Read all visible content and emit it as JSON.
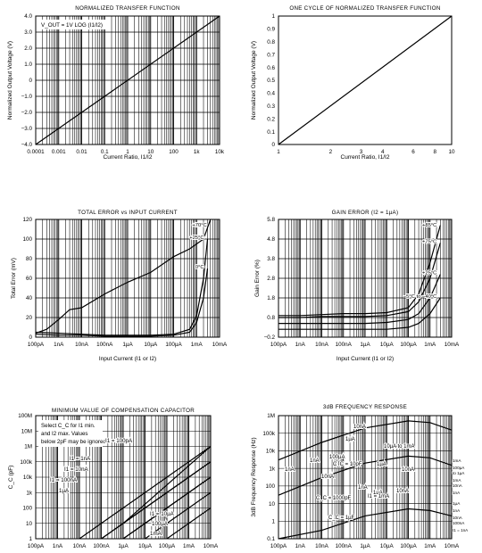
{
  "chart_data": [
    {
      "id": "c1",
      "type": "line",
      "title": "NORMALIZED TRANSFER FUNCTION",
      "annotation": "V_OUT = 1V LOG (I1/I2)",
      "xlabel": "Current Ratio, I1/I2",
      "ylabel": "Normalized Output Voltage (V)",
      "x_scale": "log",
      "xlim": [
        0.0001,
        10000
      ],
      "ylim": [
        -4,
        4
      ],
      "grid": true,
      "xticks": [
        "0.0001",
        "0.001",
        "0.01",
        "0.1",
        "1",
        "10",
        "100",
        "1k",
        "10k"
      ],
      "yticks": [
        "4.0",
        "3.0",
        "2.0",
        "1.0",
        "0",
        "−1.0",
        "−2.0",
        "−3.0",
        "−4.0"
      ],
      "series": [
        {
          "x": [
            0.0001,
            10000
          ],
          "y": [
            -4,
            4
          ]
        }
      ]
    },
    {
      "id": "c2",
      "type": "line",
      "title": "ONE CYCLE OF NORMALIZED TRANSFER FUNCTION",
      "xlabel": "Current Ratio, I1/I2",
      "ylabel": "Normalized Output Voltage (V)",
      "x_scale": "log",
      "xlim": [
        1,
        10
      ],
      "ylim": [
        0,
        1
      ],
      "grid": false,
      "xticks": [
        "1",
        "2",
        "3",
        "4",
        "6",
        "8",
        "10"
      ],
      "yticks": [
        "1",
        "0.9",
        "0.8",
        "0.7",
        "0.6",
        "0.5",
        "0.4",
        "0.3",
        "0.2",
        "0.1",
        "0"
      ],
      "series": [
        {
          "x": [
            1,
            10
          ],
          "y": [
            0,
            1
          ]
        }
      ]
    },
    {
      "id": "c3",
      "type": "line",
      "title": "TOTAL ERROR vs INPUT CURRENT",
      "xlabel": "Input Current (I1 or I2)",
      "ylabel": "Total Error (mV)",
      "x_scale": "log",
      "xlim": [
        1e-10,
        0.01
      ],
      "ylim": [
        0,
        120
      ],
      "grid": true,
      "xticks": [
        "100pA",
        "1nA",
        "10nA",
        "100nA",
        "1µA",
        "10µA",
        "100µA",
        "1mA",
        "10mA"
      ],
      "yticks": [
        "120",
        "100",
        "80",
        "60",
        "40",
        "20",
        "0"
      ],
      "series": [
        {
          "name": "+70°C",
          "x": [
            1e-10,
            3e-10,
            1e-09,
            3e-09,
            1e-08,
            1e-07,
            1e-06,
            1e-05,
            0.0001,
            0.0005,
            0.002,
            0.004
          ],
          "y": [
            4,
            8,
            18,
            28,
            30,
            44,
            56,
            66,
            82,
            90,
            100,
            120
          ]
        },
        {
          "name": "+25°C",
          "x": [
            1e-10,
            1e-09,
            1e-08,
            1e-07,
            1e-06,
            1e-05,
            0.0001,
            0.0005,
            0.001,
            0.002,
            0.003
          ],
          "y": [
            5,
            4,
            3,
            2,
            2,
            2,
            3,
            8,
            22,
            60,
            100
          ]
        },
        {
          "name": "0°C",
          "x": [
            1e-10,
            1e-09,
            1e-08,
            1e-07,
            1e-06,
            1e-05,
            0.0001,
            0.0005,
            0.001,
            0.002,
            0.003
          ],
          "y": [
            3,
            2,
            2,
            1,
            1,
            1,
            2,
            5,
            15,
            40,
            70
          ]
        }
      ]
    },
    {
      "id": "c4",
      "type": "line",
      "title": "GAIN ERROR (I2 = 1µA)",
      "xlabel": "Input Current (I1 or I2)",
      "ylabel": "Gain Error (%)",
      "x_scale": "log",
      "xlim": [
        1e-10,
        0.01
      ],
      "ylim": [
        -0.2,
        5.8
      ],
      "grid": true,
      "xticks": [
        "100pA",
        "1nA",
        "10nA",
        "100nA",
        "1µA",
        "10µA",
        "100µA",
        "1mA",
        "10mA"
      ],
      "yticks": [
        "5.8",
        "4.8",
        "3.8",
        "2.8",
        "1.8",
        "0.8",
        "−0.2"
      ],
      "series": [
        {
          "name": "+85°C",
          "x": [
            1e-10,
            1e-09,
            1e-08,
            1e-07,
            1e-06,
            1e-05,
            0.0001,
            0.0003,
            0.001,
            0.003
          ],
          "y": [
            0.9,
            0.9,
            0.95,
            1.0,
            1.0,
            1.05,
            1.3,
            2.0,
            3.6,
            5.5
          ]
        },
        {
          "name": "+75°C",
          "x": [
            1e-10,
            1e-09,
            1e-08,
            1e-07,
            1e-06,
            1e-05,
            0.0001,
            0.0003,
            0.001,
            0.003
          ],
          "y": [
            0.8,
            0.8,
            0.85,
            0.85,
            0.85,
            0.9,
            1.1,
            1.6,
            2.8,
            4.6
          ]
        },
        {
          "name": "+25°C",
          "x": [
            1e-10,
            1e-09,
            1e-08,
            1e-07,
            1e-06,
            1e-05,
            0.0001,
            0.0003,
            0.001,
            0.003
          ],
          "y": [
            0.5,
            0.5,
            0.5,
            0.5,
            0.5,
            0.55,
            0.7,
            1.0,
            1.8,
            3.0
          ]
        },
        {
          "name": "−5°C to −40°C",
          "x": [
            1e-10,
            1e-09,
            1e-08,
            1e-07,
            1e-06,
            1e-05,
            0.0001,
            0.0003,
            0.001,
            0.003
          ],
          "y": [
            0.2,
            0.2,
            0.2,
            0.2,
            0.2,
            0.2,
            0.3,
            0.5,
            1.0,
            1.8
          ]
        }
      ]
    },
    {
      "id": "c5",
      "type": "line",
      "title": "MINIMUM VALUE OF COMPENSATION CAPACITOR",
      "annotation": [
        "Select C_C for I1 min.",
        "and I2 max. Values",
        "below 2pF may be ignored."
      ],
      "xlabel": "",
      "ylabel": "C_C (pF)",
      "x_scale": "log",
      "y_scale": "log",
      "xlim": [
        1e-10,
        0.01
      ],
      "ylim": [
        1,
        100000000.0
      ],
      "grid": true,
      "xticks": [
        "100pA",
        "1nA",
        "10nA",
        "100nA",
        "1µA",
        "10µA",
        "100µA",
        "1mA",
        "10mA"
      ],
      "yticks": [
        "100M",
        "10M",
        "1M",
        "100k",
        "10k",
        "1k",
        "100",
        "10",
        "1"
      ],
      "series": [
        {
          "name": "I1 = 100pA",
          "x": [
            1e-06,
            0.01
          ],
          "y": [
            10,
            1000000.0
          ]
        },
        {
          "name": "I1 = 1nA",
          "x": [
            1e-07,
            0.01
          ],
          "y": [
            1,
            100000.0
          ]
        },
        {
          "name": "I1 = 10nA",
          "x": [
            1e-06,
            0.01
          ],
          "y": [
            1,
            10000.0
          ]
        },
        {
          "name": "I1 = 100nA",
          "x": [
            1e-08,
            0.01
          ],
          "y": [
            1,
            1000000.0
          ]
        },
        {
          "name": "1µA",
          "x": [
            1e-07,
            0.01
          ],
          "y": [
            1,
            100000.0
          ]
        },
        {
          "name": "I1 = 10µA",
          "x": [
            1e-06,
            0.01
          ],
          "y": [
            1,
            10000.0
          ]
        },
        {
          "name": "100µA",
          "x": [
            1e-05,
            0.01
          ],
          "y": [
            1,
            1000.0
          ]
        },
        {
          "name": "1mA",
          "x": [
            0.0001,
            0.01
          ],
          "y": [
            1,
            100
          ]
        }
      ],
      "labels": [
        "I1 = 100pA",
        "I1 = 1nA",
        "I1 = 10nA",
        "I1 = 100nA",
        "1µA",
        "I1 = 10µA",
        "100µA",
        "1mA"
      ]
    },
    {
      "id": "c6",
      "type": "line",
      "title": "3dB FREQUENCY RESPONSE",
      "xlabel": "",
      "ylabel": "3dB Frequency Response (Hz)",
      "x_scale": "log",
      "y_scale": "log",
      "xlim": [
        1e-10,
        0.01
      ],
      "ylim": [
        0.1,
        1000000
      ],
      "grid": true,
      "xticks": [
        "100pA",
        "1nA",
        "10nA",
        "100nA",
        "1µA",
        "10µA",
        "100µA",
        "1mA",
        "10mA"
      ],
      "yticks": [
        "1M",
        "100k",
        "10k",
        "1k",
        "100",
        "10",
        "1",
        "0.1"
      ],
      "series": [
        {
          "name": "C_C = 10pF",
          "x": [
            1e-10,
            1e-08,
            1e-06,
            0.0001,
            0.001,
            0.01
          ],
          "y": [
            3000,
            30000,
            200000,
            500000,
            400000,
            150000
          ]
        },
        {
          "name": "C_C = 1000pF",
          "x": [
            1e-10,
            1e-08,
            1e-06,
            0.0001,
            0.001,
            0.01
          ],
          "y": [
            30,
            300,
            2000,
            5000,
            4000,
            1500
          ]
        },
        {
          "name": "C_C = 1µF",
          "x": [
            1e-10,
            1e-08,
            1e-06,
            0.0001,
            0.001,
            0.01
          ],
          "y": [
            0.1,
            0.3,
            2,
            5,
            4,
            2
          ]
        }
      ],
      "labels": [
        "10nA",
        "1µA",
        "100µA",
        "1nA",
        "C_C = 10pF",
        "10µA to 1mA",
        "1nA",
        "10nA",
        "1µA",
        "10nA",
        "1nA",
        "1µA",
        "10nA",
        "C_C = 1000pF",
        "C_C = 1µF",
        "1mA",
        "100µA",
        "to 1µA",
        "1mA",
        "10nA",
        "1nA",
        "I1 = 1mA",
        "1µA",
        "1nA",
        "10nA",
        "100nA",
        "I1 = 1nA"
      ]
    }
  ]
}
